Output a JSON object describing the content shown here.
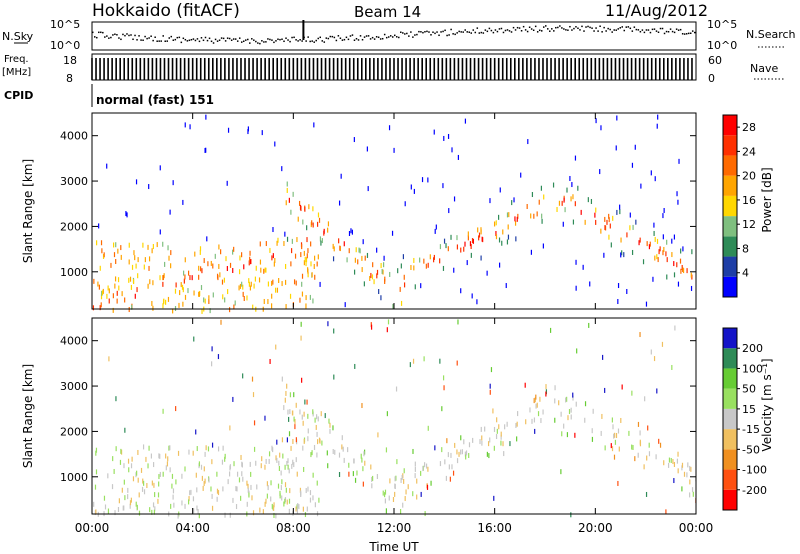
{
  "header": {
    "station": "Hokkaido (fitACF)",
    "beam": "Beam 14",
    "date": "11/Aug/2012"
  },
  "status_panel": {
    "nsky_label": "N.Sky",
    "nsearch_label": "N.Search",
    "noise_ticks": [
      "10^5",
      "10^0"
    ],
    "freq_label_1": "Freq.",
    "freq_label_2": "[MHz]",
    "freq_ticks": [
      "18",
      "8"
    ],
    "nave_label": "Nave",
    "nave_ticks": [
      "60",
      "0"
    ],
    "cpid_label": "CPID",
    "cpid_value": "normal (fast) 151"
  },
  "x_axis": {
    "label": "Time UT",
    "ticks": [
      "00:00",
      "04:00",
      "08:00",
      "12:00",
      "16:00",
      "20:00",
      "00:00"
    ]
  },
  "chart_data": [
    {
      "type": "heatmap",
      "panel": "power",
      "xlabel": "Time UT",
      "ylabel": "Slant Range [km]",
      "xlim": [
        0,
        24
      ],
      "ylim": [
        180,
        4500
      ],
      "y_ticks": [
        "1000",
        "2000",
        "3000",
        "4000"
      ],
      "colorbar": {
        "label": "Power [dB]",
        "ticks": [
          "4",
          "8",
          "12",
          "16",
          "20",
          "24",
          "28"
        ],
        "range": [
          0,
          30
        ],
        "colors": [
          "#0000ff",
          "#1e3ea6",
          "#2e8b57",
          "#7fbf7f",
          "#ffd700",
          "#ffa500",
          "#ff6a00",
          "#ff3000",
          "#ff0000"
        ]
      },
      "features": [
        {
          "x_start": 0,
          "x_end": 9,
          "y_from": 300,
          "y_to": 1700,
          "level": 18
        },
        {
          "x_start": 7.5,
          "x_end": 12.5,
          "y_from": 2800,
          "y_to": 400,
          "level": 22
        },
        {
          "x_start": 12,
          "x_end": 18.5,
          "y_from": 800,
          "y_to": 2700,
          "level": 24
        },
        {
          "x_start": 18.5,
          "x_end": 24,
          "y_from": 2700,
          "y_to": 1000,
          "level": 20
        }
      ]
    },
    {
      "type": "heatmap",
      "panel": "velocity",
      "xlabel": "Time UT",
      "ylabel": "Slant Range [km]",
      "xlim": [
        0,
        24
      ],
      "ylim": [
        180,
        4500
      ],
      "y_ticks": [
        "1000",
        "2000",
        "3000",
        "4000"
      ],
      "colorbar": {
        "label": "Velocity [m s⁻¹]",
        "ticks": [
          "200",
          "100",
          "50",
          "15",
          "-15",
          "-50",
          "-100",
          "-200"
        ],
        "colors": [
          "#1414c8",
          "#2e8b57",
          "#66cc33",
          "#99e060",
          "#c8c8c8",
          "#f0c060",
          "#f09020",
          "#ff5010",
          "#ff0000"
        ]
      }
    }
  ]
}
